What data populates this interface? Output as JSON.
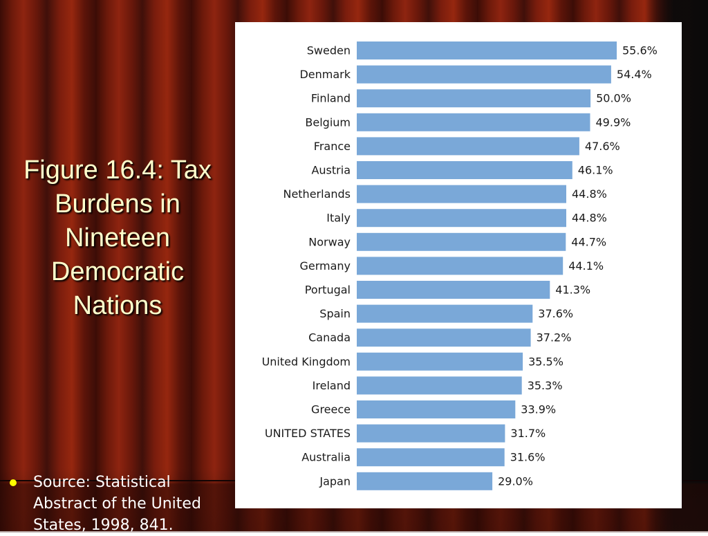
{
  "slide": {
    "title": "Figure 16.4: Tax Burdens in Nineteen Democratic Nations",
    "source": "Source: Statistical Abstract of the United States, 1998, 841."
  },
  "colors": {
    "bar": "#7aa8d8",
    "title_text": "#ffffcc",
    "bullet": "#ffff00"
  },
  "chart_data": {
    "type": "bar",
    "orientation": "horizontal",
    "categories": [
      "Sweden",
      "Denmark",
      "Finland",
      "Belgium",
      "France",
      "Austria",
      "Netherlands",
      "Italy",
      "Norway",
      "Germany",
      "Portugal",
      "Spain",
      "Canada",
      "United Kingdom",
      "Ireland",
      "Greece",
      "UNITED STATES",
      "Australia",
      "Japan"
    ],
    "values": [
      55.6,
      54.4,
      50.0,
      49.9,
      47.6,
      46.1,
      44.8,
      44.8,
      44.7,
      44.1,
      41.3,
      37.6,
      37.2,
      35.5,
      35.3,
      33.9,
      31.7,
      31.6,
      29.0
    ],
    "value_labels": [
      "55.6%",
      "54.4%",
      "50.0%",
      "49.9%",
      "47.6%",
      "46.1%",
      "44.8%",
      "44.8%",
      "44.7%",
      "44.1%",
      "41.3%",
      "37.6%",
      "37.2%",
      "35.5%",
      "35.3%",
      "33.9%",
      "31.7%",
      "31.6%",
      "29.0%"
    ],
    "xlim": [
      0,
      55.6
    ],
    "grid": false,
    "legend": "none"
  }
}
